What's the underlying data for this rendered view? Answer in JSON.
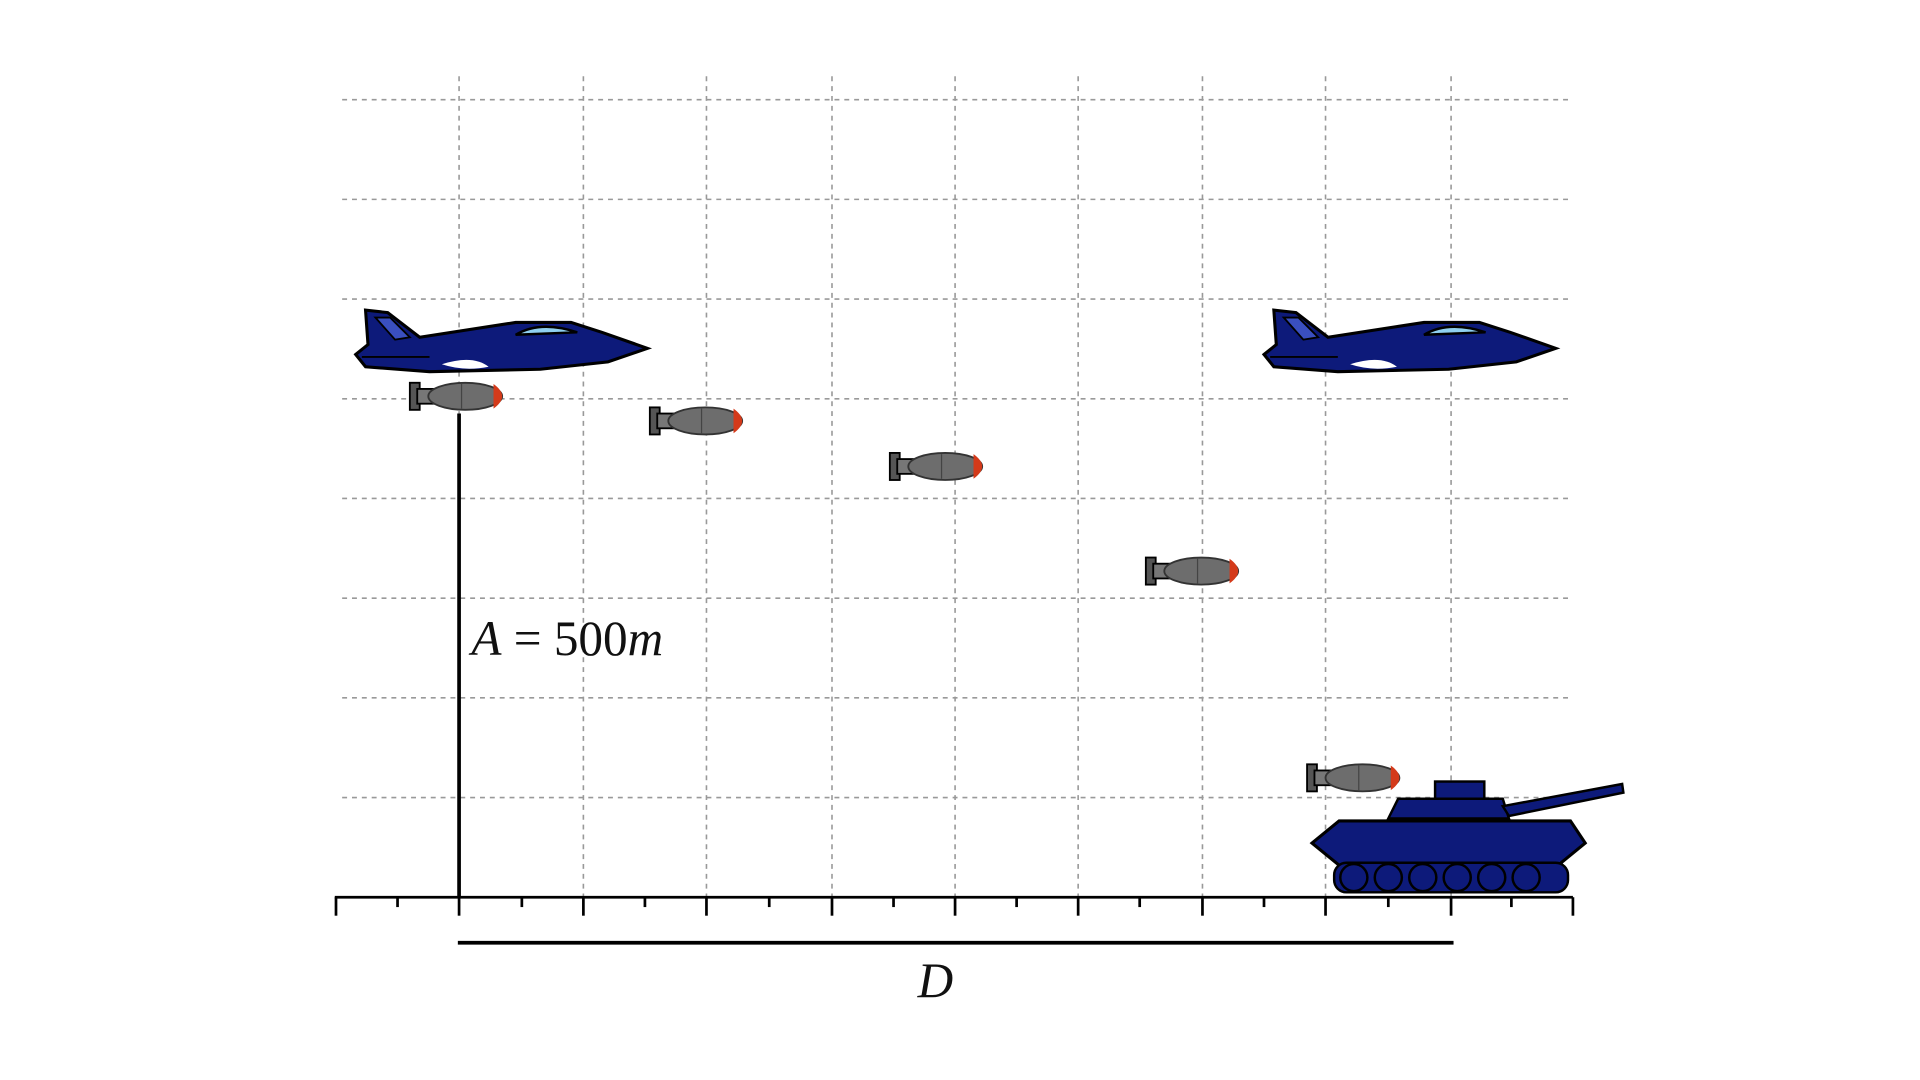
{
  "labels": {
    "altitude": {
      "variable": "A",
      "relation": "= 500",
      "unit": "m"
    },
    "distance": "D"
  }
}
